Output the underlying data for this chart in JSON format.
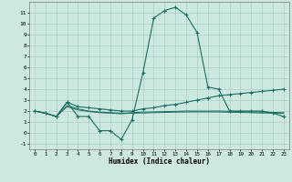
{
  "xlabel": "Humidex (Indice chaleur)",
  "xlim": [
    -0.5,
    23.5
  ],
  "ylim": [
    -1.5,
    12.0
  ],
  "yticks": [
    -1,
    0,
    1,
    2,
    3,
    4,
    5,
    6,
    7,
    8,
    9,
    10,
    11
  ],
  "xticks": [
    0,
    1,
    2,
    3,
    4,
    5,
    6,
    7,
    8,
    9,
    10,
    11,
    12,
    13,
    14,
    15,
    16,
    17,
    18,
    19,
    20,
    21,
    22,
    23
  ],
  "background_color": "#cce8e0",
  "grid_color": "#aacfc8",
  "line_color": "#1a6e60",
  "line1_x": [
    0,
    1,
    2,
    3,
    4,
    5,
    6,
    7,
    8,
    9,
    10,
    11,
    12,
    13,
    14,
    15,
    16,
    17,
    18,
    19,
    20,
    21,
    22,
    23
  ],
  "line1_y": [
    2.0,
    1.8,
    1.5,
    2.8,
    1.5,
    1.5,
    0.2,
    0.2,
    -0.6,
    1.2,
    5.5,
    10.5,
    11.2,
    11.5,
    10.8,
    9.2,
    4.2,
    4.0,
    2.0,
    2.0,
    2.0,
    2.0,
    1.8,
    1.5
  ],
  "line2_x": [
    0,
    1,
    2,
    3,
    4,
    5,
    6,
    7,
    8,
    9,
    10,
    11,
    12,
    13,
    14,
    15,
    16,
    17,
    18,
    19,
    20,
    21,
    22,
    23
  ],
  "line2_y": [
    2.0,
    1.8,
    1.5,
    2.8,
    2.4,
    2.3,
    2.2,
    2.1,
    2.0,
    2.0,
    2.2,
    2.3,
    2.5,
    2.6,
    2.8,
    3.0,
    3.2,
    3.4,
    3.5,
    3.6,
    3.7,
    3.8,
    3.9,
    4.0
  ],
  "line3_x": [
    0,
    1,
    2,
    3,
    4,
    5,
    6,
    7,
    8,
    9,
    10,
    11,
    12,
    13,
    14,
    15,
    16,
    17,
    18,
    19,
    20,
    21,
    22,
    23
  ],
  "line3_y": [
    2.0,
    1.8,
    1.5,
    2.5,
    2.2,
    2.0,
    1.9,
    1.85,
    1.8,
    1.85,
    1.9,
    1.92,
    1.95,
    1.97,
    2.0,
    2.0,
    2.0,
    2.0,
    1.98,
    1.95,
    1.93,
    1.9,
    1.88,
    1.85
  ],
  "line4_x": [
    0,
    1,
    2,
    3,
    4,
    5,
    6,
    7,
    8,
    9,
    10,
    11,
    12,
    13,
    14,
    15,
    16,
    17,
    18,
    19,
    20,
    21,
    22,
    23
  ],
  "line4_y": [
    2.0,
    1.8,
    1.5,
    2.4,
    2.1,
    1.95,
    1.85,
    1.8,
    1.75,
    1.8,
    1.82,
    1.85,
    1.87,
    1.9,
    1.91,
    1.92,
    1.92,
    1.91,
    1.89,
    1.87,
    1.85,
    1.82,
    1.8,
    1.78
  ]
}
